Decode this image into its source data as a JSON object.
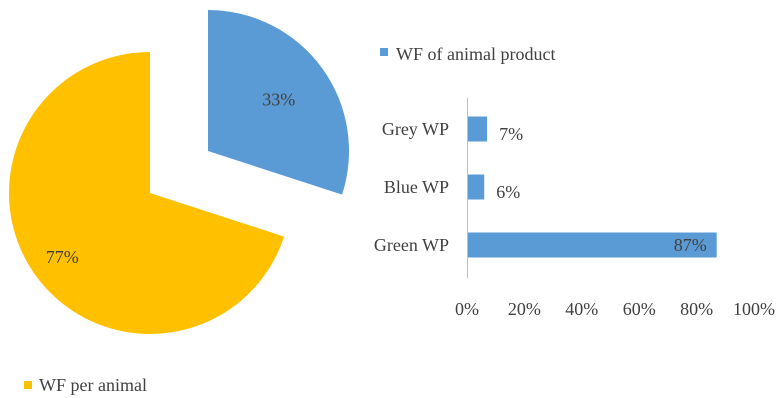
{
  "chart_data": [
    {
      "type": "pie",
      "slices": [
        {
          "label": "WF of animal product",
          "value": 33,
          "display": "33%",
          "color": "#5B9BD5",
          "exploded": true
        },
        {
          "label": "WF per animal",
          "value": 77,
          "display": "77%",
          "color": "#FFC000",
          "exploded": false
        }
      ],
      "legend": [
        {
          "label": "WF of animal product",
          "color": "#5B9BD5",
          "position": "top-right"
        },
        {
          "label": "WF per animal",
          "color": "#FFC000",
          "position": "bottom-left"
        }
      ]
    },
    {
      "type": "bar",
      "orientation": "horizontal",
      "categories": [
        "Grey WP",
        "Blue WP",
        "Green WP"
      ],
      "values": [
        7,
        6,
        87
      ],
      "data_labels": [
        "7%",
        "6%",
        "87%"
      ],
      "color": "#5B9BD5",
      "xlim": [
        0,
        100
      ],
      "xticks": [
        0,
        20,
        40,
        60,
        80,
        100
      ],
      "xtick_labels": [
        "0%",
        "20%",
        "40%",
        "60%",
        "80%",
        "100%"
      ],
      "grid": false
    }
  ]
}
